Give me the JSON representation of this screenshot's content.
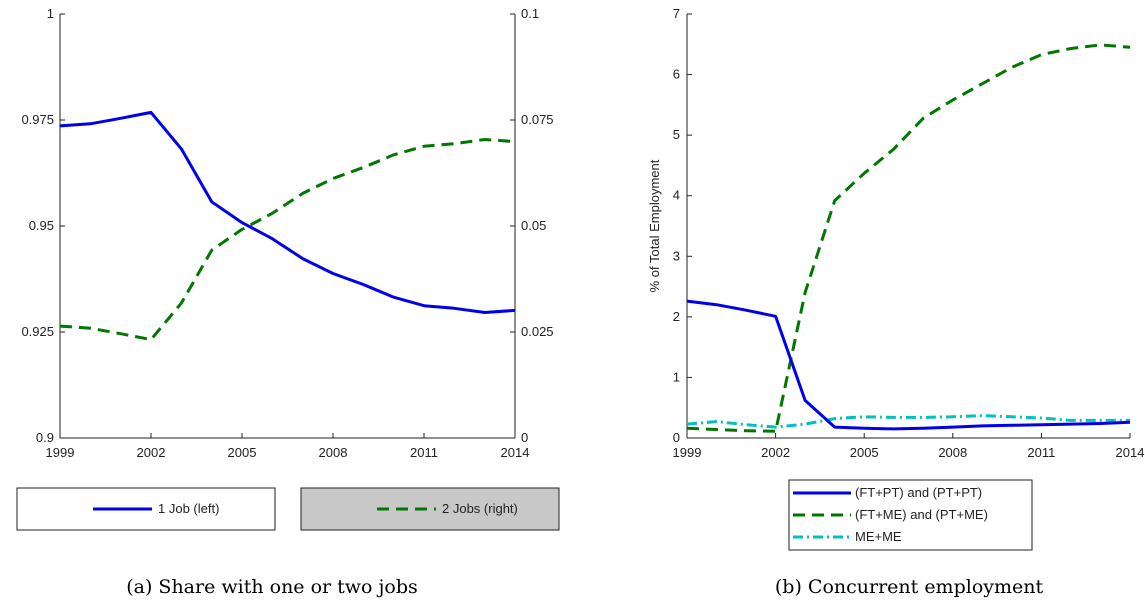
{
  "chart_data": [
    {
      "type": "line",
      "caption": "(a) Share with one or two jobs",
      "x": [
        1999,
        2000,
        2001,
        2002,
        2003,
        2004,
        2005,
        2006,
        2007,
        2008,
        2009,
        2010,
        2011,
        2012,
        2013,
        2014
      ],
      "xticks": [
        1999,
        2002,
        2005,
        2008,
        2011,
        2014
      ],
      "xlim": [
        1999,
        2014
      ],
      "left_axis": {
        "ylim": [
          0.9,
          1.0
        ],
        "ticks": [
          0.9,
          0.925,
          0.95,
          0.975,
          1.0
        ],
        "tick_labels": [
          "0.9",
          "0.925",
          "0.95",
          "0.975",
          "1"
        ]
      },
      "right_axis": {
        "ylim": [
          0,
          0.1
        ],
        "ticks": [
          0,
          0.025,
          0.05,
          0.075,
          0.1
        ],
        "tick_labels": [
          "0",
          "0.025",
          "0.05",
          "0.075",
          "0.1"
        ]
      },
      "series": [
        {
          "name": "1 Job (left)",
          "axis": "left",
          "color": "#0000ee",
          "style": "solid",
          "values": [
            0.9736,
            0.9741,
            0.9754,
            0.9768,
            0.9682,
            0.9557,
            0.9508,
            0.947,
            0.9423,
            0.9388,
            0.9362,
            0.9332,
            0.9312,
            0.9306,
            0.9296,
            0.9301
          ]
        },
        {
          "name": "2 Jobs (right)",
          "axis": "right",
          "color": "#007700",
          "style": "dashed",
          "values": [
            0.0264,
            0.0259,
            0.0246,
            0.0232,
            0.0318,
            0.0443,
            0.0492,
            0.053,
            0.0577,
            0.0612,
            0.0638,
            0.0668,
            0.0688,
            0.0694,
            0.0704,
            0.0699
          ]
        }
      ],
      "legend_placement": "below"
    },
    {
      "type": "line",
      "caption": "(b) Concurrent employment",
      "ylabel": "% of Total Employment",
      "x": [
        1999,
        2000,
        2001,
        2002,
        2003,
        2004,
        2005,
        2006,
        2007,
        2008,
        2009,
        2010,
        2011,
        2012,
        2013,
        2014
      ],
      "xticks": [
        1999,
        2002,
        2005,
        2008,
        2011,
        2014
      ],
      "xlim": [
        1999,
        2014
      ],
      "ylim": [
        0,
        7
      ],
      "yticks": [
        0,
        1,
        2,
        3,
        4,
        5,
        6,
        7
      ],
      "series": [
        {
          "name": "(FT+PT) and (PT+PT)",
          "color": "#0000ee",
          "style": "solid",
          "values": [
            2.26,
            2.2,
            2.11,
            2.01,
            0.62,
            0.18,
            0.16,
            0.15,
            0.16,
            0.18,
            0.2,
            0.21,
            0.22,
            0.23,
            0.24,
            0.26
          ]
        },
        {
          "name": "(FT+ME) and (PT+ME)",
          "color": "#007700",
          "style": "dashed",
          "values": [
            0.16,
            0.14,
            0.12,
            0.11,
            2.4,
            3.92,
            4.37,
            4.77,
            5.28,
            5.58,
            5.85,
            6.12,
            6.33,
            6.43,
            6.49,
            6.45
          ]
        },
        {
          "name": "ME+ME",
          "color": "#00c0c0",
          "style": "dashdot",
          "values": [
            0.23,
            0.27,
            0.22,
            0.18,
            0.23,
            0.32,
            0.35,
            0.34,
            0.34,
            0.35,
            0.37,
            0.35,
            0.33,
            0.29,
            0.29,
            0.29
          ]
        }
      ],
      "legend_placement": "below"
    }
  ]
}
